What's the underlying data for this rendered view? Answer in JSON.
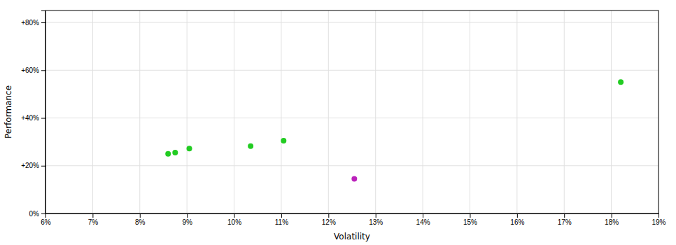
{
  "chart_data": {
    "type": "scatter",
    "x_label": "Volatility",
    "y_label": "Performance",
    "series": [
      {
        "color": "#22cc22",
        "x": [
          8.6,
          8.75,
          9.05,
          10.35,
          11.05,
          18.2
        ],
        "values": [
          25.0,
          25.5,
          27.2,
          28.2,
          30.5,
          55.0
        ]
      },
      {
        "color": "#bb22bb",
        "x": [
          12.55
        ],
        "values": [
          14.5
        ]
      }
    ],
    "xlim": [
      6,
      19
    ],
    "xticks": [
      {
        "value": 6,
        "label": "6%"
      },
      {
        "value": 7,
        "label": "7%"
      },
      {
        "value": 8,
        "label": "8%"
      },
      {
        "value": 9,
        "label": "9%"
      },
      {
        "value": 10,
        "label": "10%"
      },
      {
        "value": 11,
        "label": "11%"
      },
      {
        "value": 12,
        "label": "12%"
      },
      {
        "value": 13,
        "label": "13%"
      },
      {
        "value": 14,
        "label": "14%"
      },
      {
        "value": 15,
        "label": "15%"
      },
      {
        "value": 16,
        "label": "16%"
      },
      {
        "value": 17,
        "label": "17%"
      },
      {
        "value": 18,
        "label": "18%"
      },
      {
        "value": 19,
        "label": "19%"
      }
    ],
    "ylim": [
      0,
      85
    ],
    "yticks": [
      {
        "value": 0,
        "label": "0%"
      },
      {
        "value": 20,
        "label": "+20%"
      },
      {
        "value": 40,
        "label": "+40%"
      },
      {
        "value": 60,
        "label": "+60%"
      },
      {
        "value": 80,
        "label": "+80%"
      }
    ],
    "grid": true
  }
}
